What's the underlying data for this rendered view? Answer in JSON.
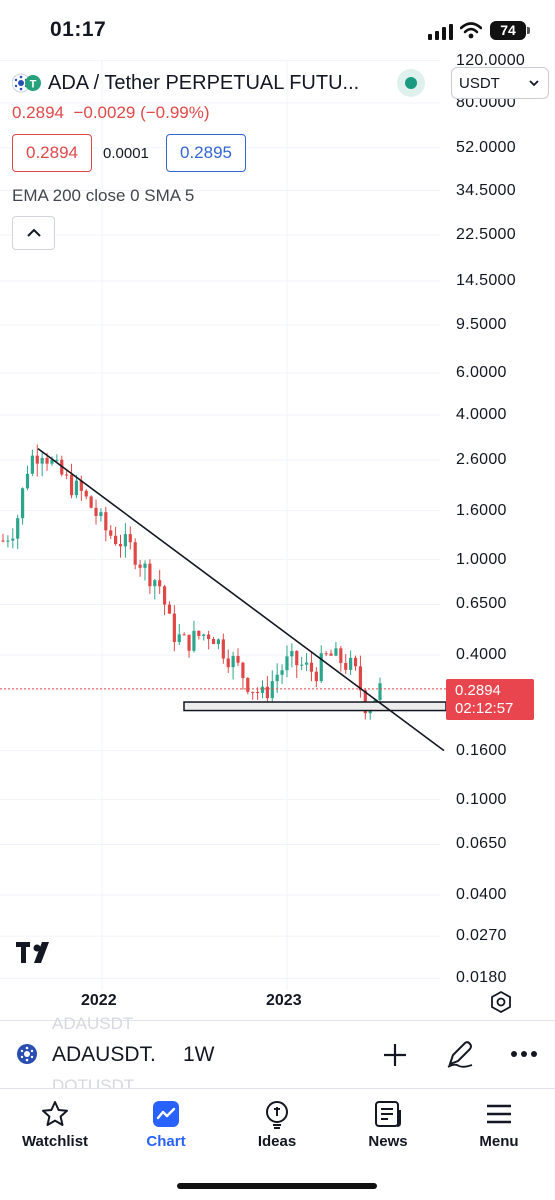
{
  "status_bar": {
    "time": "01:17",
    "battery": "74"
  },
  "header": {
    "symbol_title": "ADA / Tether PERPETUAL FUTU...",
    "last_change": "0.2894  −0.0029 (−0.99%)",
    "bid": "0.2894",
    "spread": "0.0001",
    "ask": "0.2895",
    "indicators": "EMA 200 close 0 SMA 5",
    "currency": "USDT"
  },
  "colors": {
    "up": "#2ca58d",
    "down": "#e04848",
    "ask": "#3264d6",
    "accent": "#2962ff"
  },
  "price_axis": {
    "scale": "log",
    "labels": [
      "120.0000",
      "80.0000",
      "52.0000",
      "34.5000",
      "22.5000",
      "14.5000",
      "9.5000",
      "6.0000",
      "4.0000",
      "2.6000",
      "1.6000",
      "1.0000",
      "0.6500",
      "0.4000",
      "0.2894",
      "0.1600",
      "0.1000",
      "0.0650",
      "0.0400",
      "0.0270",
      "0.0180"
    ],
    "current_price": "0.2894",
    "countdown": "02:12:57"
  },
  "time_axis": {
    "labels": [
      "2022",
      "2023"
    ]
  },
  "chart_data": {
    "type": "candlestick",
    "title": "",
    "interval": "1W",
    "y_scale": "log",
    "ylim": [
      0.018,
      120
    ],
    "xlabels": [
      "2022",
      "2023"
    ],
    "approx_weekly_close_path": [
      1.2,
      1.4,
      2.6,
      2.9,
      2.4,
      2.1,
      1.9,
      1.6,
      1.3,
      1.2,
      1.1,
      0.9,
      0.8,
      0.5,
      0.45,
      0.48,
      0.5,
      0.42,
      0.36,
      0.3,
      0.27,
      0.33,
      0.38,
      0.36,
      0.34,
      0.4,
      0.38,
      0.35,
      0.24,
      0.29
    ],
    "annotations": [
      {
        "type": "trend_line",
        "from_price": 2.9,
        "to_price": 0.16
      },
      {
        "type": "horizontal_zone",
        "price_low": 0.235,
        "price_high": 0.255
      }
    ]
  },
  "toolbar": {
    "symbol": "ADAUSDT.",
    "interval": "1W",
    "ghost_above": "ADAUSDT",
    "ghost_below": "DOTUSDT"
  },
  "nav": [
    {
      "label": "Watchlist",
      "icon": "star-icon"
    },
    {
      "label": "Chart",
      "icon": "chart-icon"
    },
    {
      "label": "Ideas",
      "icon": "lightbulb-icon"
    },
    {
      "label": "News",
      "icon": "newspaper-icon"
    },
    {
      "label": "Menu",
      "icon": "hamburger-icon"
    }
  ]
}
